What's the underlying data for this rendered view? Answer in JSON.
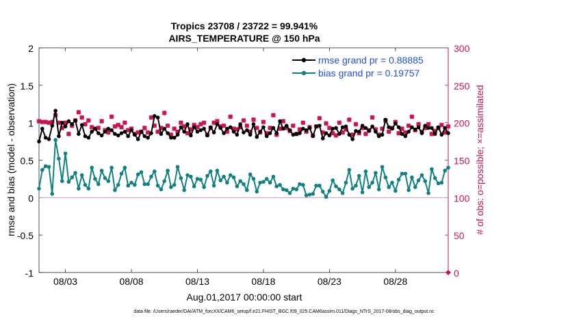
{
  "chart_data": {
    "type": "line",
    "title": "Tropics 23708 / 23722 = 99.941%",
    "subtitle": "AIRS_TEMPERATURE @ 150 hPa",
    "xlabel": "Aug.01,2017 00:00:00 start",
    "ylabel": "rmse and bias (model - observation)",
    "y2label": "# of obs: o=possible; ×=assimilated",
    "x_ticks": [
      "08/03",
      "08/08",
      "08/13",
      "08/18",
      "08/23",
      "08/28"
    ],
    "x_tick_days": [
      3,
      8,
      13,
      18,
      23,
      28
    ],
    "xlim": [
      1,
      32
    ],
    "ylim": [
      -1,
      2
    ],
    "y_ticks": [
      "-1",
      "-0.5",
      "0",
      "0.5",
      "1",
      "1.5",
      "2"
    ],
    "y_tick_values": [
      -1,
      -0.5,
      0,
      0.5,
      1,
      1.5,
      2
    ],
    "y2lim": [
      0,
      300
    ],
    "y2_ticks": [
      "0",
      "50",
      "100",
      "150",
      "200",
      "250",
      "300"
    ],
    "y2_tick_values": [
      0,
      50,
      100,
      150,
      200,
      250,
      300
    ],
    "legend_position": "top-right",
    "x_start_day": 1.0,
    "x_step_day": 0.25,
    "series": [
      {
        "name": "rmse grand pr = 0.88885",
        "color": "#000000",
        "values": [
          0.75,
          0.92,
          0.8,
          0.78,
          0.96,
          1.16,
          0.82,
          1.0,
          0.95,
          1.02,
          0.98,
          1.03,
          0.85,
          0.97,
          0.82,
          0.8,
          0.88,
          0.92,
          0.86,
          0.83,
          0.88,
          0.92,
          0.9,
          0.85,
          0.83,
          0.86,
          0.88,
          0.82,
          0.9,
          0.84,
          0.78,
          0.88,
          0.82,
          0.8,
          0.86,
          1.09,
          1.07,
          0.85,
          0.92,
          0.86,
          0.8,
          0.8,
          0.84,
          0.94,
          0.88,
          0.98,
          0.83,
          0.94,
          0.88,
          0.9,
          0.92,
          0.83,
          0.94,
          0.87,
          0.98,
          0.93,
          0.86,
          0.92,
          0.94,
          0.88,
          0.84,
          0.98,
          0.87,
          0.9,
          0.84,
          0.98,
          0.81,
          0.88,
          0.94,
          0.82,
          0.86,
          0.93,
          0.86,
          1.02,
          0.92,
          0.96,
          0.9,
          0.84,
          0.85,
          0.86,
          0.92,
          0.9,
          0.93,
          0.82,
          0.95,
          0.96,
          0.79,
          0.86,
          0.83,
          0.92,
          0.93,
          0.85,
          0.94,
          0.95,
          0.84,
          0.78,
          0.89,
          0.88,
          0.96,
          0.93,
          0.89,
          0.95,
          0.88,
          0.82,
          0.84,
          1.04,
          0.94,
          0.92,
          0.99,
          0.94,
          0.85,
          0.82,
          0.88,
          0.94,
          0.91,
          0.94,
          0.86,
          0.96,
          0.93,
          0.93,
          0.85,
          0.94,
          0.84,
          0.93,
          0.86
        ],
        "marker": "dot"
      },
      {
        "name": "bias grand pr = 0.19757",
        "color": "#118080",
        "values": [
          0.12,
          0.37,
          0.42,
          0.41,
          0.05,
          0.77,
          0.52,
          0.22,
          0.59,
          0.21,
          0.27,
          0.33,
          0.12,
          0.3,
          0.17,
          0.12,
          0.4,
          0.25,
          0.18,
          0.36,
          0.26,
          0.22,
          0.4,
          0.1,
          0.17,
          0.32,
          0.4,
          0.16,
          0.2,
          0.17,
          0.31,
          0.34,
          0.18,
          0.18,
          0.28,
          0.35,
          0.16,
          0.11,
          0.22,
          0.36,
          0.14,
          0.17,
          0.41,
          0.26,
          0.1,
          0.3,
          0.28,
          0.15,
          0.25,
          0.24,
          0.14,
          0.29,
          0.35,
          0.16,
          0.36,
          0.23,
          0.28,
          0.2,
          0.3,
          0.27,
          0.15,
          0.22,
          0.18,
          0.1,
          0.31,
          0.25,
          0.08,
          0.2,
          0.21,
          0.25,
          0.2,
          0.28,
          0.15,
          0.17,
          0.11,
          0.1,
          0.06,
          0.12,
          0.11,
          0.18,
          0.17,
          0.03,
          0.04,
          0.05,
          0.16,
          0.16,
          0.08,
          0.01,
          0.09,
          0.23,
          0.15,
          0.11,
          0.06,
          0.2,
          0.37,
          0.12,
          0.16,
          0.29,
          0.07,
          0.35,
          0.14,
          0.2,
          0.33,
          0.11,
          0.41,
          0.27,
          0.14,
          0.2,
          0.09,
          0.24,
          0.32,
          0.32,
          0.1,
          0.27,
          0.14,
          0.23,
          0.3,
          0.22,
          0.06,
          0.38,
          0.26,
          0.19,
          0.2,
          0.36,
          0.4
        ],
        "marker": "dot"
      },
      {
        "name": "# of obs assimilated",
        "color": "#cc1155",
        "axis": "right",
        "values": [
          202,
          201,
          201,
          200,
          201,
          210,
          200,
          193,
          200,
          185,
          196,
          203,
          214,
          207,
          198,
          203,
          194,
          192,
          193,
          202,
          190,
          187,
          208,
          195,
          197,
          194,
          200,
          190,
          192,
          185,
          187,
          188,
          193,
          187,
          207,
          196,
          188,
          193,
          213,
          196,
          184,
          192,
          188,
          200,
          195,
          186,
          191,
          197,
          194,
          198,
          200,
          184,
          193,
          200,
          202,
          195,
          196,
          188,
          208,
          192,
          191,
          194,
          203,
          196,
          188,
          204,
          193,
          187,
          201,
          186,
          193,
          210,
          184,
          192,
          202,
          193,
          189,
          196,
          185,
          191,
          200,
          188,
          194,
          183,
          195,
          206,
          187,
          199,
          193,
          186,
          183,
          200,
          187,
          191,
          204,
          184,
          198,
          186,
          193,
          185,
          190,
          207,
          191,
          184,
          192,
          203,
          188,
          193,
          201,
          186,
          192,
          187,
          196,
          208,
          190,
          198,
          188,
          193,
          198,
          185,
          189,
          193,
          197,
          187,
          195
        ]
      }
    ]
  },
  "footer": "data file: /Users/raeder/DAI/ATM_forcXX/CAM6_setup/f.e21.FHIST_BGC.f09_025.CAM6assim.011/Diags_NTrS_2017-08/obs_diag_output.nc"
}
